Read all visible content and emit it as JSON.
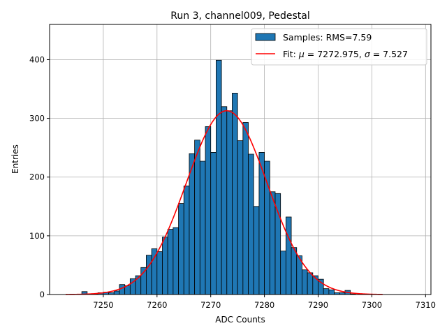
{
  "chart_data": {
    "type": "bar",
    "title": "Run 3, channel009, Pedestal",
    "xlabel": "ADC Counts",
    "ylabel": "Entries",
    "xlim": [
      7240.0,
      7311.0
    ],
    "ylim": [
      0,
      460
    ],
    "xticks": [
      7250,
      7260,
      7270,
      7280,
      7290,
      7300,
      7310
    ],
    "yticks": [
      0,
      100,
      200,
      300,
      400
    ],
    "grid": true,
    "legend_position": "top-right",
    "bin_width": 1.0,
    "series": [
      {
        "name": "Samples: RMS=7.59",
        "type": "histogram",
        "color": "#1f77b4",
        "bins": [
          [
            7246,
            5
          ],
          [
            7247,
            1
          ],
          [
            7248,
            1
          ],
          [
            7249,
            3
          ],
          [
            7250,
            4
          ],
          [
            7251,
            3
          ],
          [
            7252,
            6
          ],
          [
            7253,
            17
          ],
          [
            7254,
            15
          ],
          [
            7255,
            27
          ],
          [
            7256,
            32
          ],
          [
            7257,
            46
          ],
          [
            7258,
            67
          ],
          [
            7259,
            78
          ],
          [
            7260,
            73
          ],
          [
            7261,
            98
          ],
          [
            7262,
            111
          ],
          [
            7263,
            114
          ],
          [
            7264,
            155
          ],
          [
            7265,
            185
          ],
          [
            7266,
            240
          ],
          [
            7267,
            263
          ],
          [
            7268,
            227
          ],
          [
            7269,
            286
          ],
          [
            7270,
            242
          ],
          [
            7271,
            399
          ],
          [
            7272,
            320
          ],
          [
            7273,
            313
          ],
          [
            7274,
            343
          ],
          [
            7275,
            262
          ],
          [
            7276,
            293
          ],
          [
            7277,
            239
          ],
          [
            7278,
            150
          ],
          [
            7279,
            242
          ],
          [
            7280,
            227
          ],
          [
            7281,
            175
          ],
          [
            7282,
            172
          ],
          [
            7283,
            74
          ],
          [
            7284,
            132
          ],
          [
            7285,
            80
          ],
          [
            7286,
            66
          ],
          [
            7287,
            42
          ],
          [
            7288,
            37
          ],
          [
            7289,
            32
          ],
          [
            7290,
            26
          ],
          [
            7291,
            10
          ],
          [
            7292,
            8
          ],
          [
            7293,
            3
          ],
          [
            7294,
            3
          ],
          [
            7295,
            7
          ],
          [
            7296,
            1
          ]
        ]
      },
      {
        "name": "Fit: μ = 7272.975, σ = 7.527",
        "type": "gaussian-fit",
        "color": "#ff0000",
        "mu": 7272.975,
        "sigma": 7.527,
        "amplitude": 313,
        "x_range": [
          7243,
          7302
        ]
      }
    ]
  },
  "legend": {
    "samples_label": "Samples: RMS=7.59",
    "fit_label_prefix": "Fit: ",
    "fit_mu_symbol": "μ",
    "fit_mu_value": " = 7272.975, ",
    "fit_sigma_symbol": "σ",
    "fit_sigma_value": " = 7.527"
  }
}
